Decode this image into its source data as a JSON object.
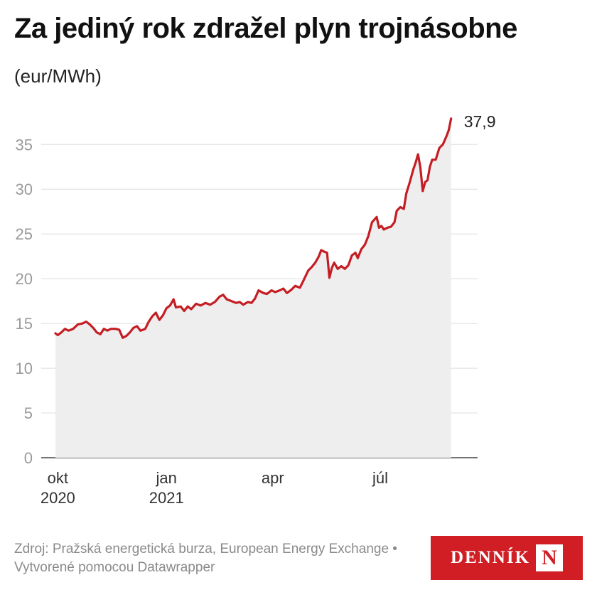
{
  "title": "Za jediný rok zdražel plyn trojnásobne",
  "subtitle": "(eur/MWh)",
  "source_text": "Zdroj: Pražská energetická burza, European Energy Exchange • Vytvorené pomocou Datawrapper",
  "logo": {
    "text": "DENNÍK",
    "mark": "N"
  },
  "colors": {
    "line": "#c41e24",
    "area": "#eeeeee",
    "grid": "#dddddd",
    "axis_text": "#9a9a9a",
    "logo_bg": "#d01e24"
  },
  "chart_data": {
    "type": "area",
    "title": "Za jediný rok zdražel plyn trojnásobne",
    "ylabel": "(eur/MWh)",
    "ylim": [
      0,
      38
    ],
    "yticks": [
      0,
      5,
      10,
      15,
      20,
      25,
      30,
      35
    ],
    "xlim": [
      "2020-09-29",
      "2021-09-10"
    ],
    "xticks": [
      {
        "date": "2020-10-01",
        "label": "okt",
        "sublabel": "2020"
      },
      {
        "date": "2021-01-01",
        "label": "jan",
        "sublabel": "2021"
      },
      {
        "date": "2021-04-01",
        "label": "apr",
        "sublabel": ""
      },
      {
        "date": "2021-07-01",
        "label": "júl",
        "sublabel": ""
      }
    ],
    "grid": true,
    "end_label": "37,9",
    "series": [
      {
        "points": [
          [
            "2020-09-29",
            13.9
          ],
          [
            "2020-10-01",
            13.7
          ],
          [
            "2020-10-04",
            14.0
          ],
          [
            "2020-10-07",
            14.4
          ],
          [
            "2020-10-10",
            14.2
          ],
          [
            "2020-10-14",
            14.4
          ],
          [
            "2020-10-18",
            14.9
          ],
          [
            "2020-10-22",
            15.0
          ],
          [
            "2020-10-25",
            15.2
          ],
          [
            "2020-10-28",
            14.9
          ],
          [
            "2020-10-31",
            14.5
          ],
          [
            "2020-11-03",
            14.0
          ],
          [
            "2020-11-06",
            13.8
          ],
          [
            "2020-11-09",
            14.4
          ],
          [
            "2020-11-12",
            14.2
          ],
          [
            "2020-11-15",
            14.4
          ],
          [
            "2020-11-19",
            14.4
          ],
          [
            "2020-11-22",
            14.3
          ],
          [
            "2020-11-25",
            13.4
          ],
          [
            "2020-11-28",
            13.6
          ],
          [
            "2020-12-01",
            14.0
          ],
          [
            "2020-12-04",
            14.5
          ],
          [
            "2020-12-07",
            14.7
          ],
          [
            "2020-12-10",
            14.2
          ],
          [
            "2020-12-14",
            14.4
          ],
          [
            "2020-12-17",
            15.2
          ],
          [
            "2020-12-20",
            15.8
          ],
          [
            "2020-12-23",
            16.2
          ],
          [
            "2020-12-26",
            15.4
          ],
          [
            "2020-12-29",
            15.9
          ],
          [
            "2021-01-01",
            16.7
          ],
          [
            "2021-01-04",
            17.0
          ],
          [
            "2021-01-07",
            17.7
          ],
          [
            "2021-01-09",
            16.8
          ],
          [
            "2021-01-13",
            16.9
          ],
          [
            "2021-01-16",
            16.4
          ],
          [
            "2021-01-19",
            16.9
          ],
          [
            "2021-01-22",
            16.6
          ],
          [
            "2021-01-26",
            17.2
          ],
          [
            "2021-01-30",
            17.0
          ],
          [
            "2021-02-03",
            17.3
          ],
          [
            "2021-02-07",
            17.1
          ],
          [
            "2021-02-11",
            17.4
          ],
          [
            "2021-02-15",
            18.0
          ],
          [
            "2021-02-18",
            18.2
          ],
          [
            "2021-02-21",
            17.7
          ],
          [
            "2021-02-25",
            17.5
          ],
          [
            "2021-03-01",
            17.3
          ],
          [
            "2021-03-04",
            17.4
          ],
          [
            "2021-03-07",
            17.1
          ],
          [
            "2021-03-11",
            17.4
          ],
          [
            "2021-03-14",
            17.3
          ],
          [
            "2021-03-17",
            17.8
          ],
          [
            "2021-03-20",
            18.7
          ],
          [
            "2021-03-24",
            18.4
          ],
          [
            "2021-03-27",
            18.3
          ],
          [
            "2021-03-31",
            18.7
          ],
          [
            "2021-04-03",
            18.5
          ],
          [
            "2021-04-07",
            18.7
          ],
          [
            "2021-04-10",
            18.9
          ],
          [
            "2021-04-13",
            18.4
          ],
          [
            "2021-04-17",
            18.8
          ],
          [
            "2021-04-20",
            19.2
          ],
          [
            "2021-04-24",
            19.0
          ],
          [
            "2021-04-27",
            19.8
          ],
          [
            "2021-05-01",
            20.9
          ],
          [
            "2021-05-04",
            21.3
          ],
          [
            "2021-05-07",
            21.8
          ],
          [
            "2021-05-10",
            22.5
          ],
          [
            "2021-05-12",
            23.2
          ],
          [
            "2021-05-15",
            23.0
          ],
          [
            "2021-05-17",
            22.9
          ],
          [
            "2021-05-19",
            20.1
          ],
          [
            "2021-05-21",
            21.2
          ],
          [
            "2021-05-23",
            21.8
          ],
          [
            "2021-05-26",
            21.1
          ],
          [
            "2021-05-29",
            21.4
          ],
          [
            "2021-06-01",
            21.1
          ],
          [
            "2021-06-04",
            21.5
          ],
          [
            "2021-06-07",
            22.6
          ],
          [
            "2021-06-10",
            22.9
          ],
          [
            "2021-06-12",
            22.3
          ],
          [
            "2021-06-15",
            23.3
          ],
          [
            "2021-06-18",
            23.8
          ],
          [
            "2021-06-21",
            24.8
          ],
          [
            "2021-06-24",
            26.3
          ],
          [
            "2021-06-26",
            26.6
          ],
          [
            "2021-06-28",
            26.9
          ],
          [
            "2021-06-30",
            25.7
          ],
          [
            "2021-07-02",
            25.9
          ],
          [
            "2021-07-04",
            25.5
          ],
          [
            "2021-07-07",
            25.7
          ],
          [
            "2021-07-10",
            25.8
          ],
          [
            "2021-07-13",
            26.3
          ],
          [
            "2021-07-15",
            27.6
          ],
          [
            "2021-07-18",
            28.0
          ],
          [
            "2021-07-21",
            27.8
          ],
          [
            "2021-07-23",
            29.5
          ],
          [
            "2021-07-26",
            30.8
          ],
          [
            "2021-07-29",
            32.2
          ],
          [
            "2021-07-31",
            33.0
          ],
          [
            "2021-08-02",
            33.9
          ],
          [
            "2021-08-04",
            32.4
          ],
          [
            "2021-08-06",
            29.8
          ],
          [
            "2021-08-08",
            30.8
          ],
          [
            "2021-08-10",
            31.0
          ],
          [
            "2021-08-12",
            32.5
          ],
          [
            "2021-08-14",
            33.3
          ],
          [
            "2021-08-17",
            33.3
          ],
          [
            "2021-08-20",
            34.6
          ],
          [
            "2021-08-23",
            35.0
          ],
          [
            "2021-08-26",
            35.9
          ],
          [
            "2021-08-28",
            36.6
          ],
          [
            "2021-08-30",
            37.9
          ]
        ]
      }
    ]
  }
}
